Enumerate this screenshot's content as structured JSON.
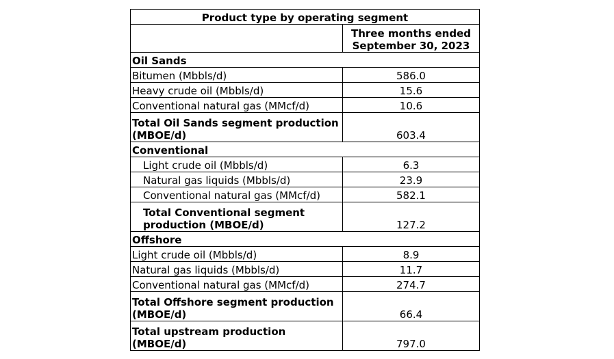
{
  "table": {
    "title": "Product type by operating segment",
    "header": "Three months ended September 30, 2023",
    "sections": [
      {
        "title": "Oil Sands",
        "rows": [
          {
            "label": "Bitumen (Mbbls/d)",
            "value": "586.0"
          },
          {
            "label": "Heavy crude oil (Mbbls/d)",
            "value": "15.6"
          },
          {
            "label": "Conventional natural gas (MMcf/d)",
            "value": "10.6"
          }
        ],
        "total": {
          "label": "Total Oil Sands segment production (MBOE/d)",
          "value": "603.4"
        }
      },
      {
        "title": "Conventional",
        "rows": [
          {
            "label": "Light crude oil (Mbbls/d)",
            "value": "6.3"
          },
          {
            "label": "Natural gas liquids (Mbbls/d)",
            "value": "23.9"
          },
          {
            "label": "Conventional natural gas (MMcf/d)",
            "value": "582.1"
          }
        ],
        "total": {
          "label": "Total Conventional segment production (MBOE/d)",
          "value": "127.2"
        }
      },
      {
        "title": "Offshore",
        "rows": [
          {
            "label": "Light crude oil (Mbbls/d)",
            "value": "8.9"
          },
          {
            "label": "Natural gas liquids (Mbbls/d)",
            "value": "11.7"
          },
          {
            "label": "Conventional natural gas (MMcf/d)",
            "value": "274.7"
          }
        ],
        "total": {
          "label": "Total Offshore segment production (MBOE/d)",
          "value": "66.4"
        }
      }
    ],
    "grand_total": {
      "label": "Total upstream production (MBOE/d)",
      "value": "797.0"
    }
  }
}
